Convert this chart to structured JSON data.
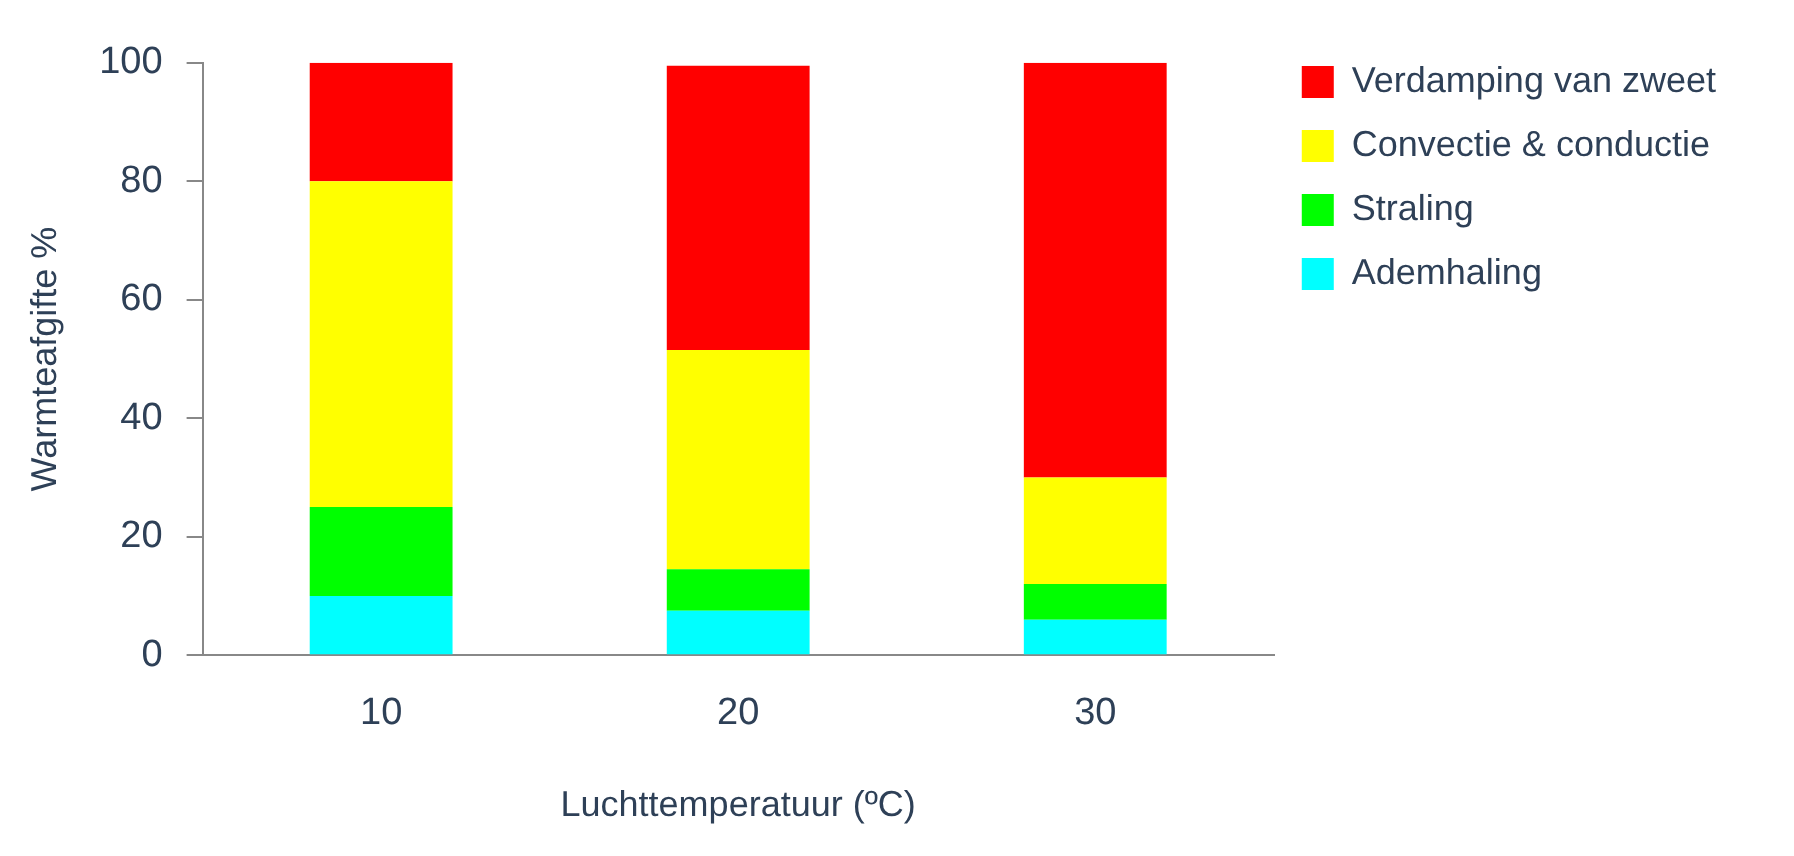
{
  "chart_data": {
    "type": "bar",
    "stacked": true,
    "xlabel": "Luchttemperatuur (ºC)",
    "ylabel": "Warmteafgifte %",
    "categories": [
      "10",
      "20",
      "30"
    ],
    "series": [
      {
        "name": "Ademhaling",
        "color": "#00ffff",
        "values": [
          10,
          7.5,
          6
        ]
      },
      {
        "name": "Straling",
        "color": "#00ff00",
        "values": [
          15,
          7,
          6
        ]
      },
      {
        "name": "Convectie & conductie",
        "color": "#ffff00",
        "values": [
          55,
          37,
          18
        ]
      },
      {
        "name": "Verdamping van zweet",
        "color": "#ff0000",
        "values": [
          20,
          48,
          70
        ]
      }
    ],
    "ylim": [
      0,
      100
    ],
    "yticks": [
      0,
      20,
      40,
      60,
      80,
      100
    ],
    "grid": false,
    "legend": "right"
  }
}
